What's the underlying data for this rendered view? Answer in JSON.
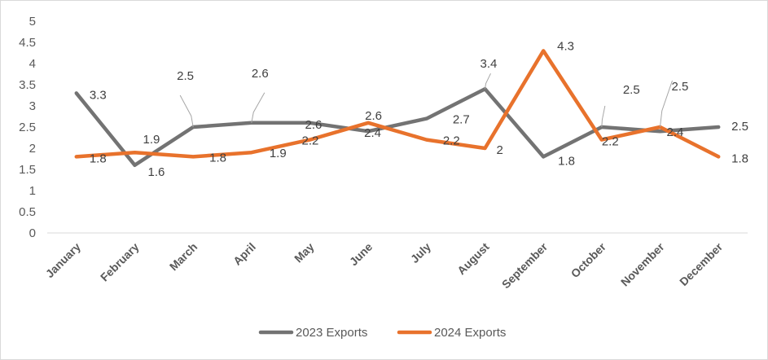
{
  "chart_data": {
    "type": "line",
    "title": "",
    "xlabel": "",
    "ylabel": "",
    "ylim": [
      0,
      5
    ],
    "yticks": [
      "0",
      "0.5",
      "1",
      "1.5",
      "2",
      "2.5",
      "3",
      "3.5",
      "4",
      "4.5",
      "5"
    ],
    "grid": false,
    "legend_position": "bottom",
    "categories": [
      "January",
      "February",
      "March",
      "April",
      "May",
      "June",
      "July",
      "August",
      "September",
      "October",
      "November",
      "December"
    ],
    "series": [
      {
        "name": "2023 Exports",
        "color": "#737373",
        "values": [
          3.3,
          1.6,
          2.5,
          2.6,
          2.6,
          2.4,
          2.7,
          3.4,
          1.8,
          2.5,
          2.4,
          2.5
        ],
        "labels": [
          "3.3",
          "1.6",
          "2.5",
          "2.6",
          "2.6",
          "2.4",
          "2.7",
          "3.4",
          "1.8",
          "2.5",
          "2.4",
          "2.5"
        ]
      },
      {
        "name": "2024 Exports",
        "color": "#e8722c",
        "values": [
          1.8,
          1.9,
          1.8,
          1.9,
          2.2,
          2.6,
          2.2,
          2.0,
          4.3,
          2.2,
          2.5,
          1.8
        ],
        "labels": [
          "1.8",
          "1.9",
          "1.8",
          "1.9",
          "2.2",
          "2.6",
          "2.2",
          "2",
          "4.3",
          "2.2",
          "2.5",
          "1.8"
        ]
      }
    ]
  }
}
